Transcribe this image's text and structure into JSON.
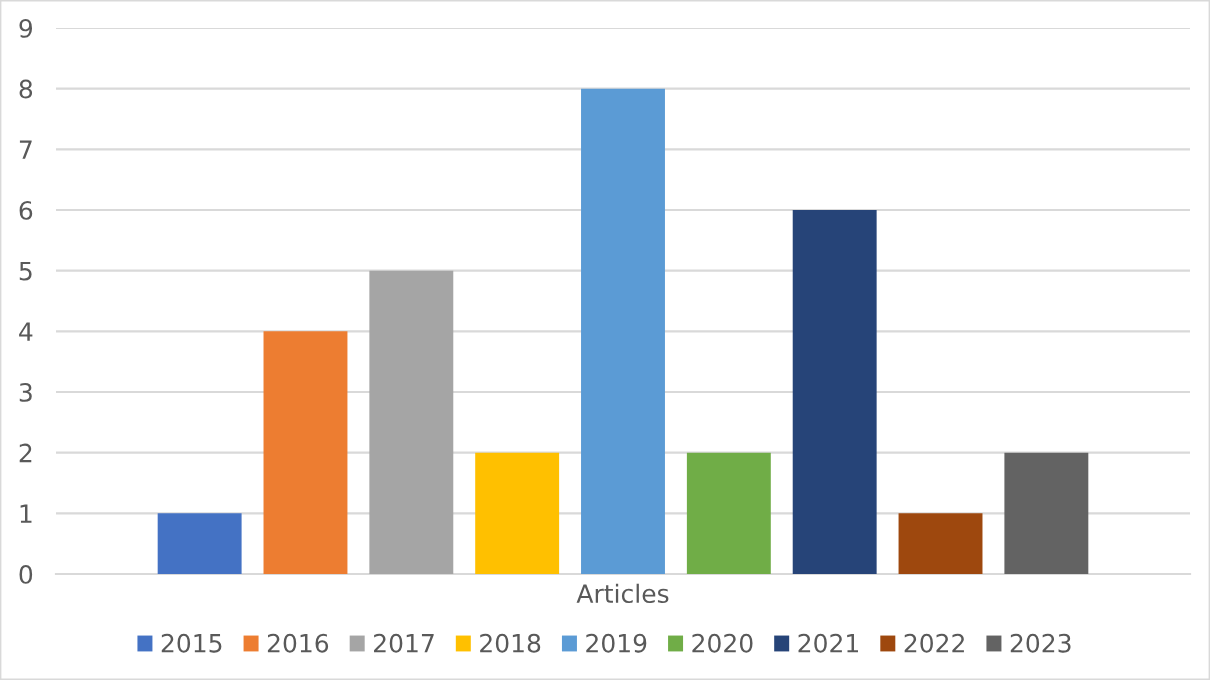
{
  "chart_data": {
    "type": "bar",
    "categories": [
      "Articles"
    ],
    "series": [
      {
        "name": "2015",
        "color": "#4472c4",
        "values": [
          1
        ]
      },
      {
        "name": "2016",
        "color": "#ed7d31",
        "values": [
          4
        ]
      },
      {
        "name": "2017",
        "color": "#a5a5a5",
        "values": [
          5
        ]
      },
      {
        "name": "2018",
        "color": "#ffc000",
        "values": [
          2
        ]
      },
      {
        "name": "2019",
        "color": "#5b9bd5",
        "values": [
          8
        ]
      },
      {
        "name": "2020",
        "color": "#70ad47",
        "values": [
          2
        ]
      },
      {
        "name": "2021",
        "color": "#264478",
        "values": [
          6
        ]
      },
      {
        "name": "2022",
        "color": "#9e480e",
        "values": [
          1
        ]
      },
      {
        "name": "2023",
        "color": "#636363",
        "values": [
          2
        ]
      }
    ],
    "ylim": [
      0,
      9
    ],
    "yticks": [
      0,
      1,
      2,
      3,
      4,
      5,
      6,
      7,
      8,
      9
    ],
    "grid": "y",
    "legend": "bottom"
  }
}
